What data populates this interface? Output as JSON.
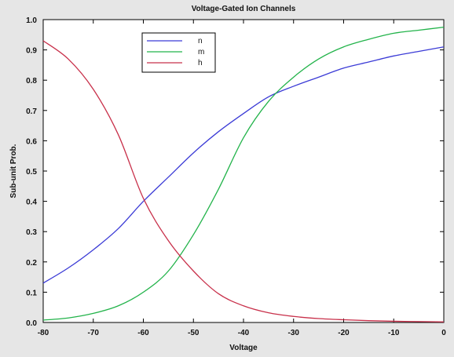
{
  "chart_data": {
    "type": "line",
    "title": "Voltage-Gated Ion Channels",
    "xlabel": "Voltage",
    "ylabel": "Sub-unit Prob.",
    "xlim": [
      -80,
      0
    ],
    "ylim": [
      0,
      1
    ],
    "x_ticks": [
      -80,
      -70,
      -60,
      -50,
      -40,
      -30,
      -20,
      -10,
      0
    ],
    "y_ticks": [
      0.0,
      0.1,
      0.2,
      0.3,
      0.4,
      0.5,
      0.6,
      0.7,
      0.8,
      0.9,
      1.0
    ],
    "grid": false,
    "legend_position": "top-left",
    "x": [
      -80,
      -75,
      -70,
      -65,
      -60,
      -55,
      -50,
      -45,
      -40,
      -35,
      -30,
      -25,
      -20,
      -15,
      -10,
      -5,
      0
    ],
    "series": [
      {
        "name": "n",
        "color": "#3b3bd6",
        "values": [
          0.13,
          0.18,
          0.24,
          0.31,
          0.4,
          0.48,
          0.56,
          0.63,
          0.69,
          0.745,
          0.78,
          0.81,
          0.84,
          0.86,
          0.88,
          0.895,
          0.91
        ]
      },
      {
        "name": "m",
        "color": "#22b34a",
        "values": [
          0.008,
          0.015,
          0.03,
          0.055,
          0.1,
          0.17,
          0.29,
          0.44,
          0.61,
          0.73,
          0.81,
          0.87,
          0.91,
          0.935,
          0.955,
          0.965,
          0.975
        ]
      },
      {
        "name": "h",
        "color": "#c8304a",
        "values": [
          0.93,
          0.87,
          0.77,
          0.62,
          0.41,
          0.27,
          0.17,
          0.095,
          0.055,
          0.032,
          0.02,
          0.013,
          0.009,
          0.006,
          0.004,
          0.003,
          0.002
        ]
      }
    ]
  }
}
